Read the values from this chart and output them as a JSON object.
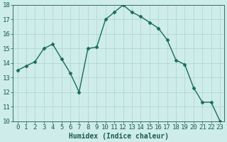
{
  "x": [
    0,
    1,
    2,
    3,
    4,
    5,
    6,
    7,
    8,
    9,
    10,
    11,
    12,
    13,
    14,
    15,
    16,
    17,
    18,
    19,
    20,
    21,
    22,
    23
  ],
  "y": [
    13.5,
    13.8,
    14.1,
    15.0,
    15.3,
    14.3,
    13.3,
    12.0,
    15.0,
    15.1,
    17.0,
    17.5,
    18.0,
    17.5,
    17.2,
    16.8,
    16.4,
    15.6,
    14.2,
    13.9,
    12.3,
    11.3,
    11.3,
    10.0
  ],
  "xlabel": "Humidex (Indice chaleur)",
  "ylim": [
    10,
    18
  ],
  "xlim_min": -0.5,
  "xlim_max": 23.5,
  "yticks": [
    10,
    11,
    12,
    13,
    14,
    15,
    16,
    17,
    18
  ],
  "xticks": [
    0,
    1,
    2,
    3,
    4,
    5,
    6,
    7,
    8,
    9,
    10,
    11,
    12,
    13,
    14,
    15,
    16,
    17,
    18,
    19,
    20,
    21,
    22,
    23
  ],
  "line_color": "#1a6b5e",
  "marker": "D",
  "marker_size": 2.5,
  "bg_color": "#ceecea",
  "grid_color": "#aed4d0",
  "tick_label_color": "#1a5c50",
  "xlabel_color": "#1a5c50",
  "xlabel_fontsize": 7,
  "tick_fontsize": 6.5,
  "linewidth": 1.0
}
